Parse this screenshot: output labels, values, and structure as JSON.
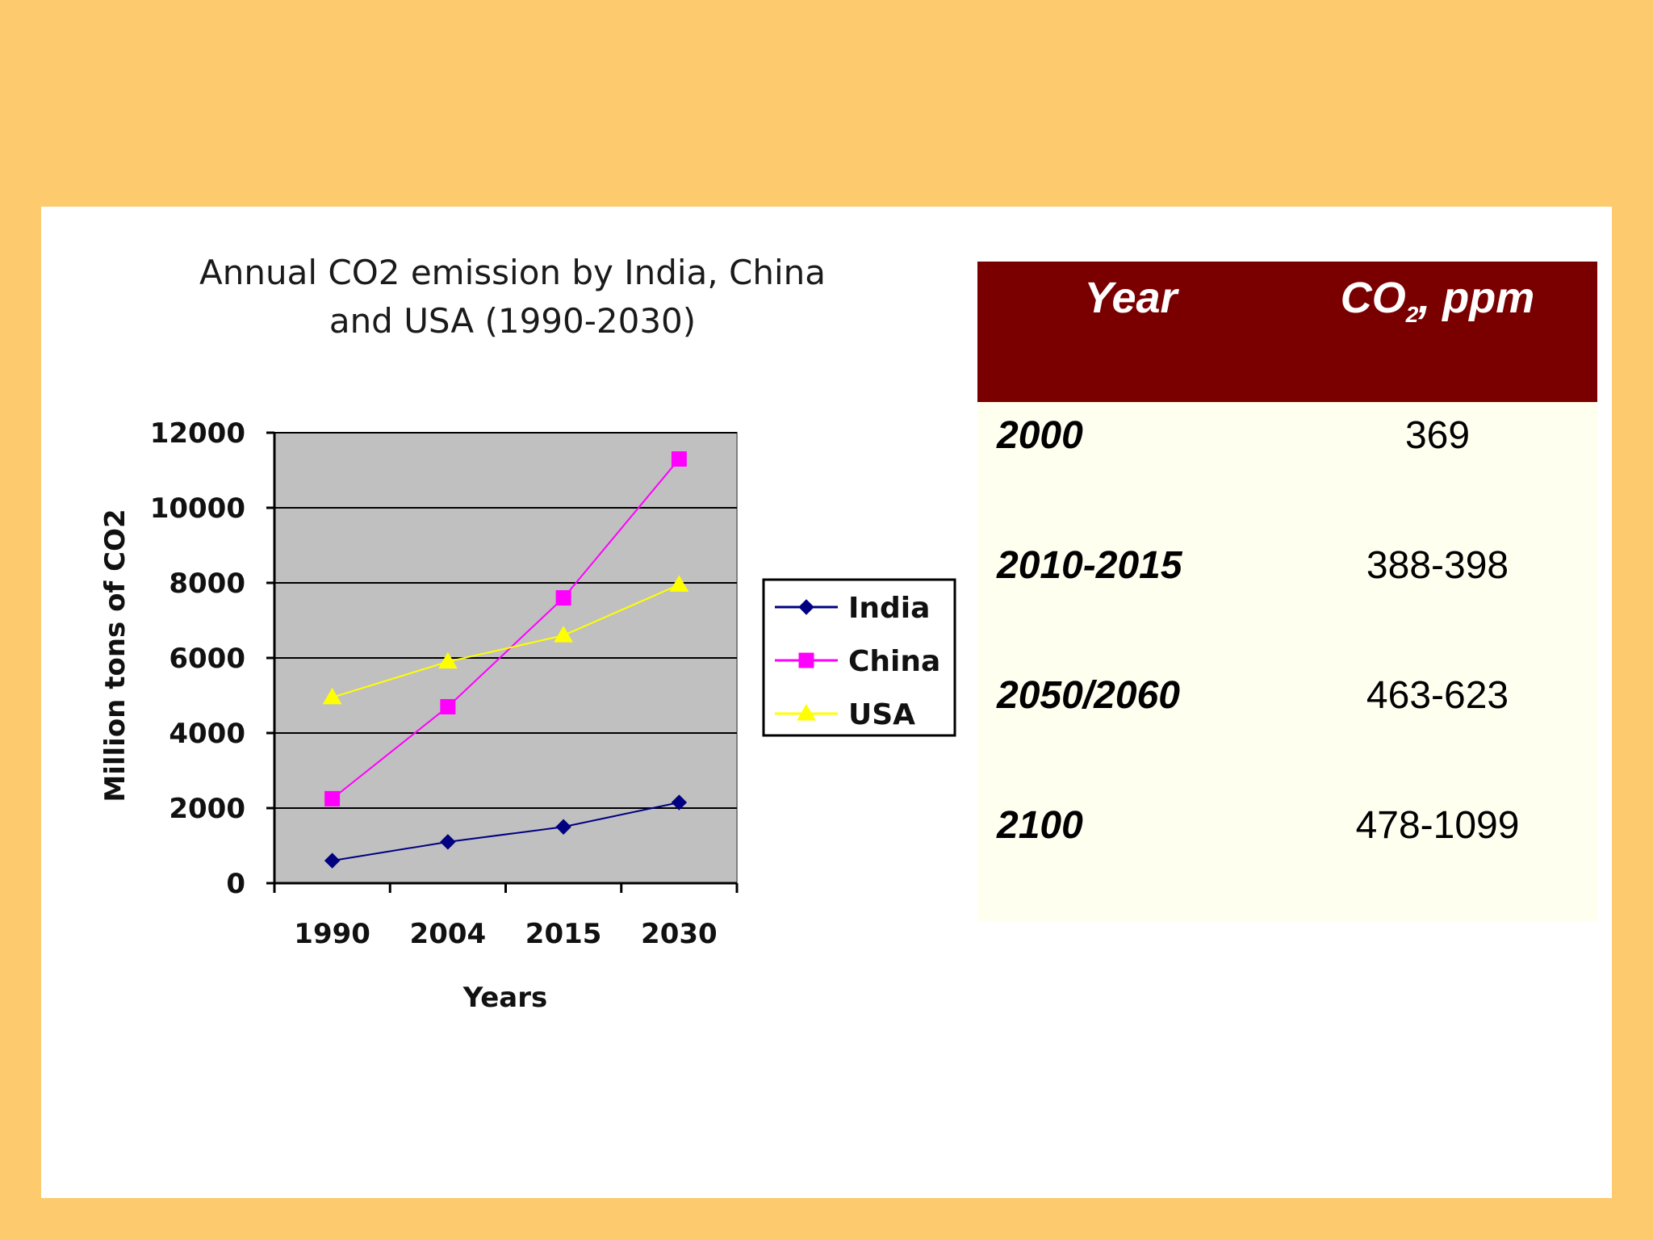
{
  "chart_data": {
    "type": "line",
    "title_lines": [
      "Annual CO2 emission by India, China",
      "and USA (1990-2030)"
    ],
    "xlabel": "Years",
    "ylabel": "Million tons of CO2",
    "categories": [
      "1990",
      "2004",
      "2015",
      "2030"
    ],
    "ylim": [
      0,
      12000
    ],
    "yticks": [
      "0",
      "2000",
      "4000",
      "6000",
      "8000",
      "10000",
      "12000"
    ],
    "grid": "horizontal",
    "legend_position": "right",
    "series": [
      {
        "name": "India",
        "color": "#000080",
        "marker": "diamond",
        "values": [
          600,
          1100,
          1500,
          2150
        ]
      },
      {
        "name": "China",
        "color": "#FF00FF",
        "marker": "square",
        "values": [
          2250,
          4700,
          7600,
          11300
        ]
      },
      {
        "name": "USA",
        "color": "#FFFF00",
        "marker": "triangle",
        "values": [
          4950,
          5900,
          6600,
          7950
        ]
      }
    ]
  },
  "table": {
    "header_year": "Year",
    "header_co2_main": "CO",
    "header_co2_sub": "2",
    "header_co2_rest": ", ppm",
    "rows": [
      {
        "year": "2000",
        "value": "369"
      },
      {
        "year": "2010-2015",
        "value": "388-398"
      },
      {
        "year": "2050/2060",
        "value": "463-623"
      },
      {
        "year": "2100",
        "value": "478-1099"
      }
    ]
  }
}
